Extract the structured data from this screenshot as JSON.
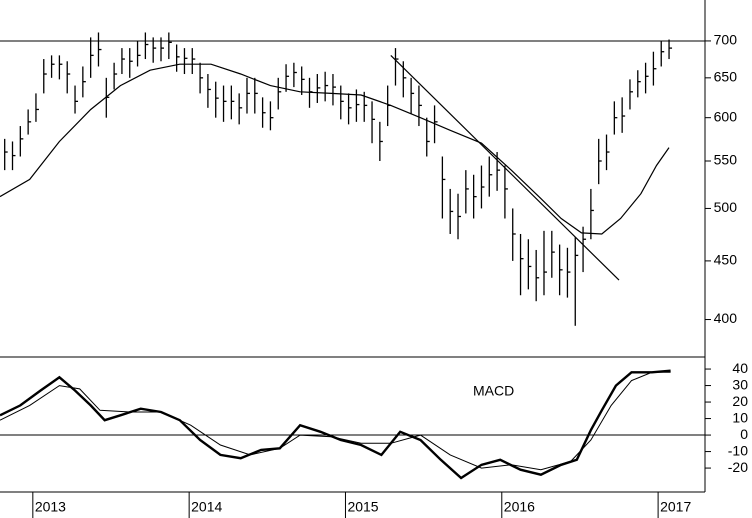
{
  "chart_data": [
    {
      "type": "ohlc",
      "log_y": true,
      "xlim": [
        2012.79,
        2017.3
      ],
      "ylim": [
        371,
        760
      ],
      "yticks": [
        400,
        450,
        500,
        550,
        600,
        650,
        700
      ],
      "hline": 700,
      "bars": {
        "color": "#000",
        "x": [
          2012.82,
          2012.87,
          2012.92,
          2012.97,
          2013.02,
          2013.07,
          2013.12,
          2013.17,
          2013.22,
          2013.27,
          2013.32,
          2013.37,
          2013.42,
          2013.47,
          2013.52,
          2013.57,
          2013.62,
          2013.67,
          2013.72,
          2013.77,
          2013.82,
          2013.87,
          2013.92,
          2013.97,
          2014.02,
          2014.07,
          2014.12,
          2014.17,
          2014.22,
          2014.27,
          2014.32,
          2014.37,
          2014.42,
          2014.47,
          2014.52,
          2014.57,
          2014.62,
          2014.67,
          2014.72,
          2014.77,
          2014.82,
          2014.87,
          2014.92,
          2014.97,
          2015.02,
          2015.07,
          2015.12,
          2015.17,
          2015.22,
          2015.27,
          2015.32,
          2015.37,
          2015.42,
          2015.47,
          2015.52,
          2015.57,
          2015.62,
          2015.67,
          2015.72,
          2015.77,
          2015.82,
          2015.87,
          2015.92,
          2015.97,
          2016.02,
          2016.07,
          2016.12,
          2016.17,
          2016.22,
          2016.27,
          2016.32,
          2016.37,
          2016.42,
          2016.47,
          2016.52,
          2016.57,
          2016.62,
          2016.67,
          2016.72,
          2016.77,
          2016.82,
          2016.87,
          2016.92,
          2016.97,
          2017.02,
          2017.07
        ],
        "high": [
          575,
          572,
          590,
          610,
          630,
          675,
          680,
          680,
          672,
          640,
          665,
          705,
          712,
          650,
          670,
          690,
          690,
          700,
          712,
          705,
          705,
          712,
          695,
          690,
          690,
          670,
          655,
          645,
          640,
          640,
          630,
          650,
          650,
          625,
          620,
          650,
          668,
          670,
          665,
          650,
          655,
          658,
          655,
          640,
          630,
          635,
          632,
          620,
          595,
          640,
          690,
          672,
          650,
          640,
          600,
          615,
          555,
          520,
          515,
          540,
          535,
          545,
          555,
          560,
          545,
          500,
          475,
          470,
          460,
          478,
          478,
          465,
          462,
          472,
          482,
          520,
          575,
          580,
          620,
          625,
          648,
          660,
          670,
          685,
          700,
          702
        ],
        "low": [
          540,
          540,
          555,
          580,
          595,
          630,
          650,
          648,
          630,
          605,
          625,
          650,
          665,
          600,
          635,
          655,
          650,
          665,
          675,
          670,
          672,
          675,
          658,
          655,
          655,
          630,
          612,
          600,
          595,
          598,
          592,
          605,
          605,
          588,
          585,
          610,
          632,
          638,
          628,
          612,
          618,
          620,
          615,
          598,
          592,
          595,
          595,
          570,
          550,
          590,
          640,
          625,
          605,
          590,
          555,
          570,
          490,
          475,
          470,
          495,
          490,
          500,
          512,
          518,
          490,
          450,
          420,
          425,
          415,
          420,
          435,
          420,
          418,
          395,
          440,
          470,
          525,
          540,
          580,
          582,
          610,
          625,
          630,
          640,
          665,
          675
        ],
        "close": [
          560,
          556,
          575,
          595,
          610,
          655,
          668,
          668,
          655,
          620,
          645,
          680,
          688,
          625,
          655,
          675,
          672,
          680,
          695,
          690,
          690,
          698,
          678,
          676,
          675,
          650,
          635,
          624,
          620,
          620,
          612,
          630,
          630,
          606,
          600,
          632,
          652,
          657,
          648,
          632,
          637,
          640,
          638,
          620,
          612,
          616,
          615,
          598,
          572,
          615,
          675,
          650,
          630,
          615,
          572,
          595,
          530,
          497,
          492,
          520,
          512,
          522,
          535,
          540,
          520,
          475,
          452,
          445,
          435,
          440,
          458,
          442,
          440,
          455,
          470,
          498,
          550,
          560,
          600,
          602,
          632,
          645,
          652,
          662,
          685,
          690
        ]
      },
      "lines": [
        {
          "color": "#000",
          "x": [
            2012.79,
            2012.98,
            2013.17,
            2013.37,
            2013.56,
            2013.75,
            2013.94,
            2014.14,
            2014.33,
            2014.52,
            2014.71,
            2014.91,
            2015.1,
            2015.29,
            2015.48,
            2015.67,
            2015.87,
            2016.06,
            2016.25,
            2016.38,
            2016.51,
            2016.64,
            2016.76,
            2016.89,
            2016.99,
            2017.07
          ],
          "values": [
            512,
            530,
            572,
            610,
            640,
            660,
            668,
            668,
            655,
            640,
            632,
            630,
            628,
            615,
            600,
            585,
            570,
            540,
            510,
            490,
            476,
            475,
            490,
            515,
            545,
            565
          ]
        },
        {
          "color": "#000",
          "x": [
            2015.29,
            2016.75
          ],
          "values": [
            680,
            433
          ]
        }
      ]
    },
    {
      "type": "line",
      "annotation": "MACD",
      "xlim": [
        2012.79,
        2017.3
      ],
      "ylim": [
        -34.5,
        47.3
      ],
      "yticks": [
        40,
        30,
        20,
        10,
        0,
        -10,
        -20
      ],
      "hline": 0,
      "xticks": [
        2013,
        2014,
        2015,
        2016,
        2017
      ],
      "series": [
        {
          "color": "#000",
          "width": 2.4,
          "x": [
            2012.79,
            2012.92,
            2013.05,
            2013.17,
            2013.27,
            2013.37,
            2013.46,
            2013.56,
            2013.69,
            2013.82,
            2013.94,
            2014.07,
            2014.2,
            2014.33,
            2014.46,
            2014.58,
            2014.71,
            2014.84,
            2014.97,
            2015.1,
            2015.23,
            2015.35,
            2015.48,
            2015.61,
            2015.74,
            2015.87,
            2015.99,
            2016.12,
            2016.25,
            2016.38,
            2016.48,
            2016.57,
            2016.64,
            2016.73,
            2016.83,
            2016.96,
            2017.08
          ],
          "values": [
            12,
            18,
            27,
            35,
            27,
            18,
            9,
            12,
            16,
            14,
            9,
            -3,
            -12,
            -14,
            -9,
            -8,
            6,
            2,
            -3,
            -6,
            -12,
            2,
            -3,
            -15,
            -26,
            -18,
            -15,
            -21,
            -24,
            -18,
            -15,
            3,
            15,
            30,
            38,
            38,
            39
          ]
        },
        {
          "color": "#000",
          "width": 1,
          "x": [
            2012.79,
            2012.98,
            2013.17,
            2013.3,
            2013.43,
            2013.62,
            2013.82,
            2014.01,
            2014.2,
            2014.39,
            2014.58,
            2014.71,
            2014.91,
            2015.1,
            2015.29,
            2015.48,
            2015.67,
            2015.87,
            2016.06,
            2016.25,
            2016.44,
            2016.57,
            2016.7,
            2016.83,
            2016.96,
            2017.08
          ],
          "values": [
            9,
            18,
            30,
            28,
            15,
            14,
            14,
            6,
            -6,
            -12,
            -8,
            0,
            -1,
            -5,
            -5,
            0,
            -12,
            -20,
            -18,
            -21,
            -16,
            -3,
            18,
            33,
            38,
            38
          ]
        }
      ]
    }
  ]
}
